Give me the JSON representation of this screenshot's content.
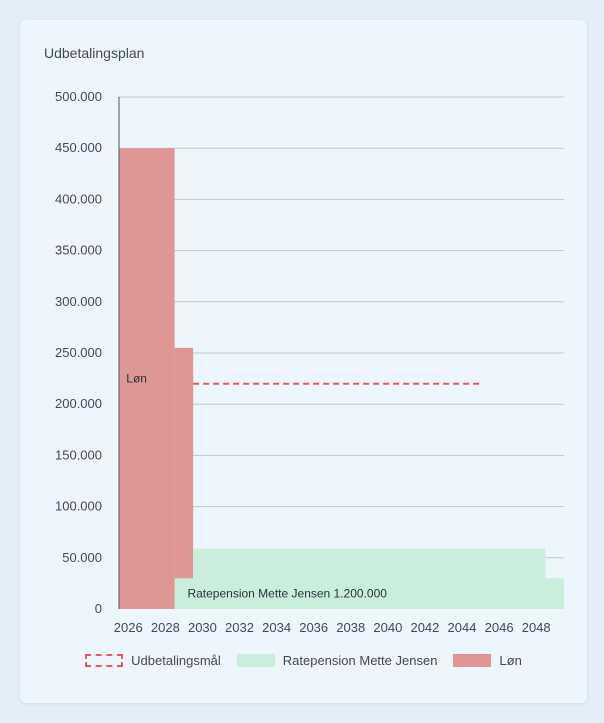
{
  "title": "Udbetalingsplan",
  "colors": {
    "loen": "#df9795",
    "ratepension": "#c9efdc",
    "target": "#e85a5a",
    "grid": "#b9c9d4",
    "text": "#3f4a57"
  },
  "chart_data": {
    "type": "bar",
    "x_ticks": [
      "2026",
      "2028",
      "2030",
      "2032",
      "2034",
      "2036",
      "2038",
      "2040",
      "2042",
      "2044",
      "2046",
      "2048"
    ],
    "y_ticks": [
      "500.000",
      "450.000",
      "400.000",
      "350.000",
      "300.000",
      "250.000",
      "200.000",
      "150.000",
      "100.000",
      "50.000",
      "0"
    ],
    "ylim": [
      0,
      500000
    ],
    "xlim": [
      2025.5,
      2049.5
    ],
    "series": [
      {
        "name": "Løn",
        "segments": [
          {
            "from": 2025.5,
            "to": 2028.5,
            "value": 450000
          },
          {
            "from": 2028.5,
            "to": 2029.5,
            "value": 255000
          }
        ],
        "annotation": {
          "text": "Løn",
          "x": 2026,
          "y": 225000
        }
      },
      {
        "name": "Ratepension Mette Jensen",
        "segments": [
          {
            "from": 2028.5,
            "to": 2029.5,
            "value": 30000
          },
          {
            "from": 2029.5,
            "to": 2048.5,
            "value": 59000
          },
          {
            "from": 2048.5,
            "to": 2049.5,
            "value": 30000
          }
        ],
        "annotation": {
          "text": "Ratepension Mette Jensen 1.200.000",
          "x": 2029.3,
          "y": 15000
        }
      }
    ],
    "target": {
      "name": "Udbetalingsmål",
      "from": 2029.5,
      "to": 2045,
      "value": 220000
    }
  }
}
